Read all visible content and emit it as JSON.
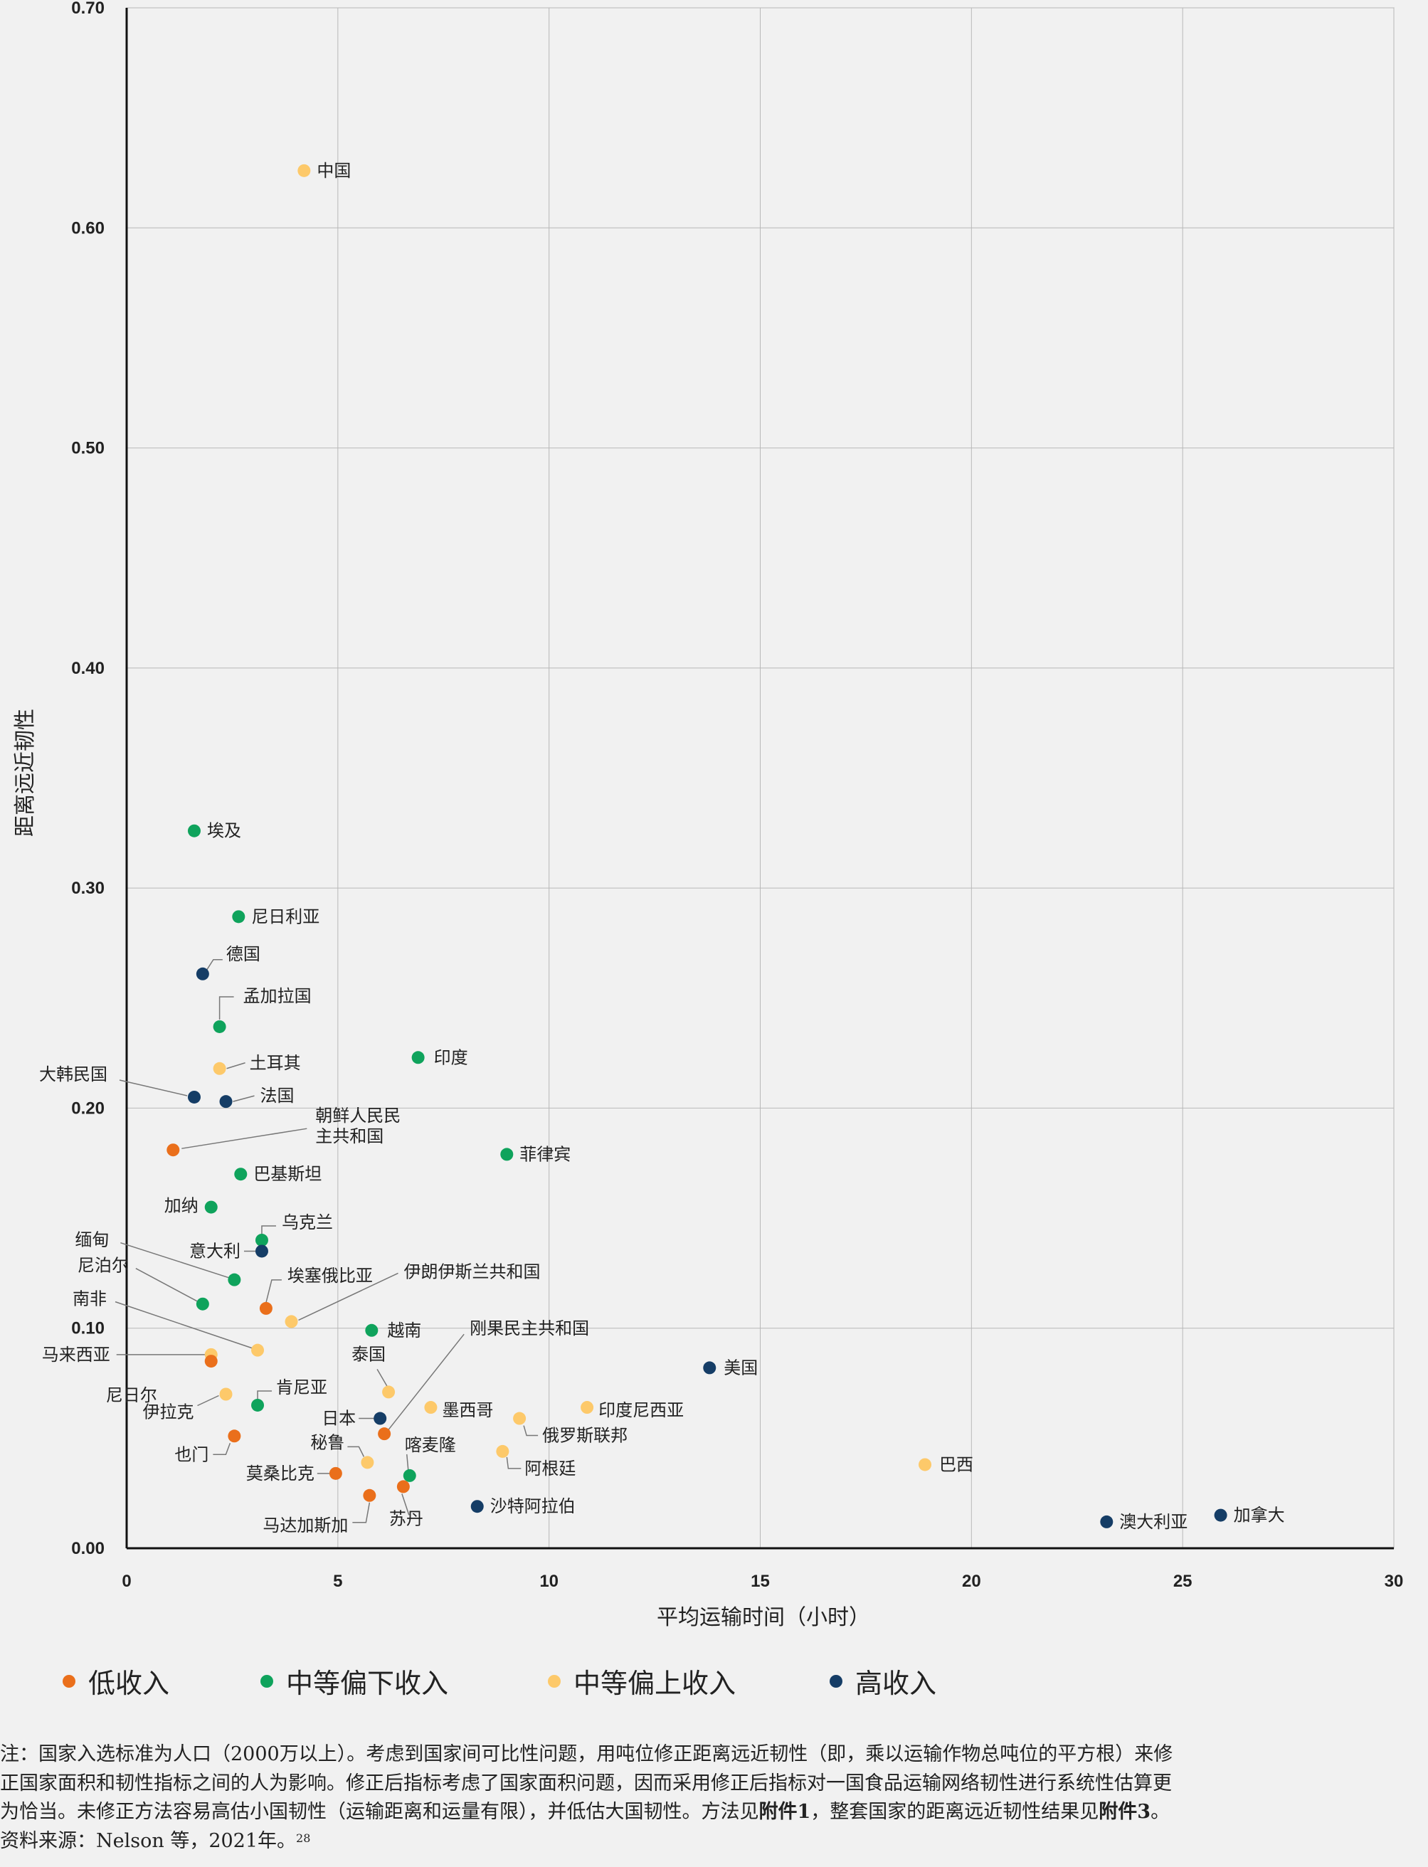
{
  "chart_data": {
    "type": "scatter",
    "xlabel": "平均运输时间（小时）",
    "ylabel": "距离远近韧性",
    "xlim": [
      0,
      30
    ],
    "ylim": [
      0,
      0.7
    ],
    "xticks": [
      "0",
      "5",
      "10",
      "15",
      "20",
      "25",
      "30"
    ],
    "yticks": [
      "0.00",
      "0.10",
      "0.20",
      "0.30",
      "0.40",
      "0.50",
      "0.60",
      "0.70"
    ],
    "series": [
      {
        "name": "低收入",
        "key": "low",
        "color": "#ea6f1b"
      },
      {
        "name": "中等偏下收入",
        "key": "lowermid",
        "color": "#0fa35c"
      },
      {
        "name": "中等偏上收入",
        "key": "uppermid",
        "color": "#fdc96a"
      },
      {
        "name": "高收入",
        "key": "high",
        "color": "#153d66"
      }
    ],
    "points": [
      {
        "label": "中国",
        "series": "uppermid",
        "x": 4.2,
        "y": 0.626
      },
      {
        "label": "埃及",
        "series": "lowermid",
        "x": 1.6,
        "y": 0.326
      },
      {
        "label": "尼日利亚",
        "series": "lowermid",
        "x": 2.65,
        "y": 0.287
      },
      {
        "label": "德国",
        "series": "high",
        "x": 1.8,
        "y": 0.261
      },
      {
        "label": "孟加拉国",
        "series": "lowermid",
        "x": 2.2,
        "y": 0.237
      },
      {
        "label": "印度",
        "series": "lowermid",
        "x": 6.9,
        "y": 0.223
      },
      {
        "label": "土耳其",
        "series": "uppermid",
        "x": 2.2,
        "y": 0.218
      },
      {
        "label": "大韩民国",
        "series": "high",
        "x": 1.6,
        "y": 0.205
      },
      {
        "label": "法国",
        "series": "high",
        "x": 2.35,
        "y": 0.203
      },
      {
        "label": "朝鲜人民民主共和国",
        "series": "low",
        "x": 1.1,
        "y": 0.181
      },
      {
        "label": "菲律宾",
        "series": "lowermid",
        "x": 9.0,
        "y": 0.179
      },
      {
        "label": "巴基斯坦",
        "series": "lowermid",
        "x": 2.7,
        "y": 0.17
      },
      {
        "label": "加纳",
        "series": "lowermid",
        "x": 2.0,
        "y": 0.155
      },
      {
        "label": "乌克兰",
        "series": "lowermid",
        "x": 3.2,
        "y": 0.14
      },
      {
        "label": "意大利",
        "series": "high",
        "x": 3.2,
        "y": 0.135
      },
      {
        "label": "缅甸",
        "series": "lowermid",
        "x": 2.55,
        "y": 0.122
      },
      {
        "label": "尼泊尔",
        "series": "lowermid",
        "x": 1.8,
        "y": 0.111
      },
      {
        "label": "埃塞俄比亚",
        "series": "low",
        "x": 3.3,
        "y": 0.109
      },
      {
        "label": "伊朗伊斯兰共和国",
        "series": "uppermid",
        "x": 3.9,
        "y": 0.103
      },
      {
        "label": "越南",
        "series": "lowermid",
        "x": 5.8,
        "y": 0.099
      },
      {
        "label": "南非",
        "series": "uppermid",
        "x": 3.1,
        "y": 0.09
      },
      {
        "label": "马来西亚",
        "series": "uppermid",
        "x": 2.0,
        "y": 0.088
      },
      {
        "label": "尼日尔",
        "series": "low",
        "x": 2.0,
        "y": 0.085
      },
      {
        "label": "美国",
        "series": "high",
        "x": 13.8,
        "y": 0.082
      },
      {
        "label": "泰国",
        "series": "uppermid",
        "x": 6.2,
        "y": 0.071
      },
      {
        "label": "伊拉克",
        "series": "uppermid",
        "x": 2.35,
        "y": 0.07
      },
      {
        "label": "肯尼亚",
        "series": "lowermid",
        "x": 3.1,
        "y": 0.065
      },
      {
        "label": "墨西哥",
        "series": "uppermid",
        "x": 7.2,
        "y": 0.064
      },
      {
        "label": "印度尼西亚",
        "series": "uppermid",
        "x": 10.9,
        "y": 0.064
      },
      {
        "label": "日本",
        "series": "high",
        "x": 6.0,
        "y": 0.059
      },
      {
        "label": "俄罗斯联邦",
        "series": "uppermid",
        "x": 9.3,
        "y": 0.059
      },
      {
        "label": "刚果民主共和国",
        "series": "low",
        "x": 6.1,
        "y": 0.052
      },
      {
        "label": "也门",
        "series": "low",
        "x": 2.55,
        "y": 0.051
      },
      {
        "label": "阿根廷",
        "series": "uppermid",
        "x": 8.9,
        "y": 0.044
      },
      {
        "label": "秘鲁",
        "series": "uppermid",
        "x": 5.7,
        "y": 0.039
      },
      {
        "label": "巴西",
        "series": "uppermid",
        "x": 18.9,
        "y": 0.038
      },
      {
        "label": "莫桑比克",
        "series": "low",
        "x": 4.95,
        "y": 0.034
      },
      {
        "label": "喀麦隆",
        "series": "lowermid",
        "x": 6.7,
        "y": 0.033
      },
      {
        "label": "苏丹",
        "series": "low",
        "x": 6.55,
        "y": 0.028
      },
      {
        "label": "马达加斯加",
        "series": "low",
        "x": 5.75,
        "y": 0.024
      },
      {
        "label": "沙特阿拉伯",
        "series": "high",
        "x": 8.3,
        "y": 0.019
      },
      {
        "label": "加拿大",
        "series": "high",
        "x": 25.9,
        "y": 0.015
      },
      {
        "label": "澳大利亚",
        "series": "high",
        "x": 23.2,
        "y": 0.012
      }
    ]
  },
  "legend": [
    {
      "label": "低收入",
      "color": "#ea6f1b"
    },
    {
      "label": "中等偏下收入",
      "color": "#0fa35c"
    },
    {
      "label": "中等偏上收入",
      "color": "#fdc96a"
    },
    {
      "label": "高收入",
      "color": "#153d66"
    }
  ],
  "note": {
    "line1": "注：国家入选标准为人口（2000万以上）。考虑到国家间可比性问题，用吨位修正距离远近韧性（即，乘以运输作物总吨位的平方根）来修",
    "line2": "正国家面积和韧性指标之间的人为影响。修正后指标考虑了国家面积问题，因而采用修正后指标对一国食品运输网络韧性进行系统性估算更",
    "line3a": "为恰当。未修正方法容易高估小国韧性（运输距离和运量有限），并低估大国韧性。方法见",
    "annex1": "附件1",
    "line3b": "，整套国家的距离远近韧性结果见",
    "annex3": "附件3",
    "line3c": "。",
    "source": "资料来源：Nelson 等，2021年。",
    "sup": "28"
  }
}
